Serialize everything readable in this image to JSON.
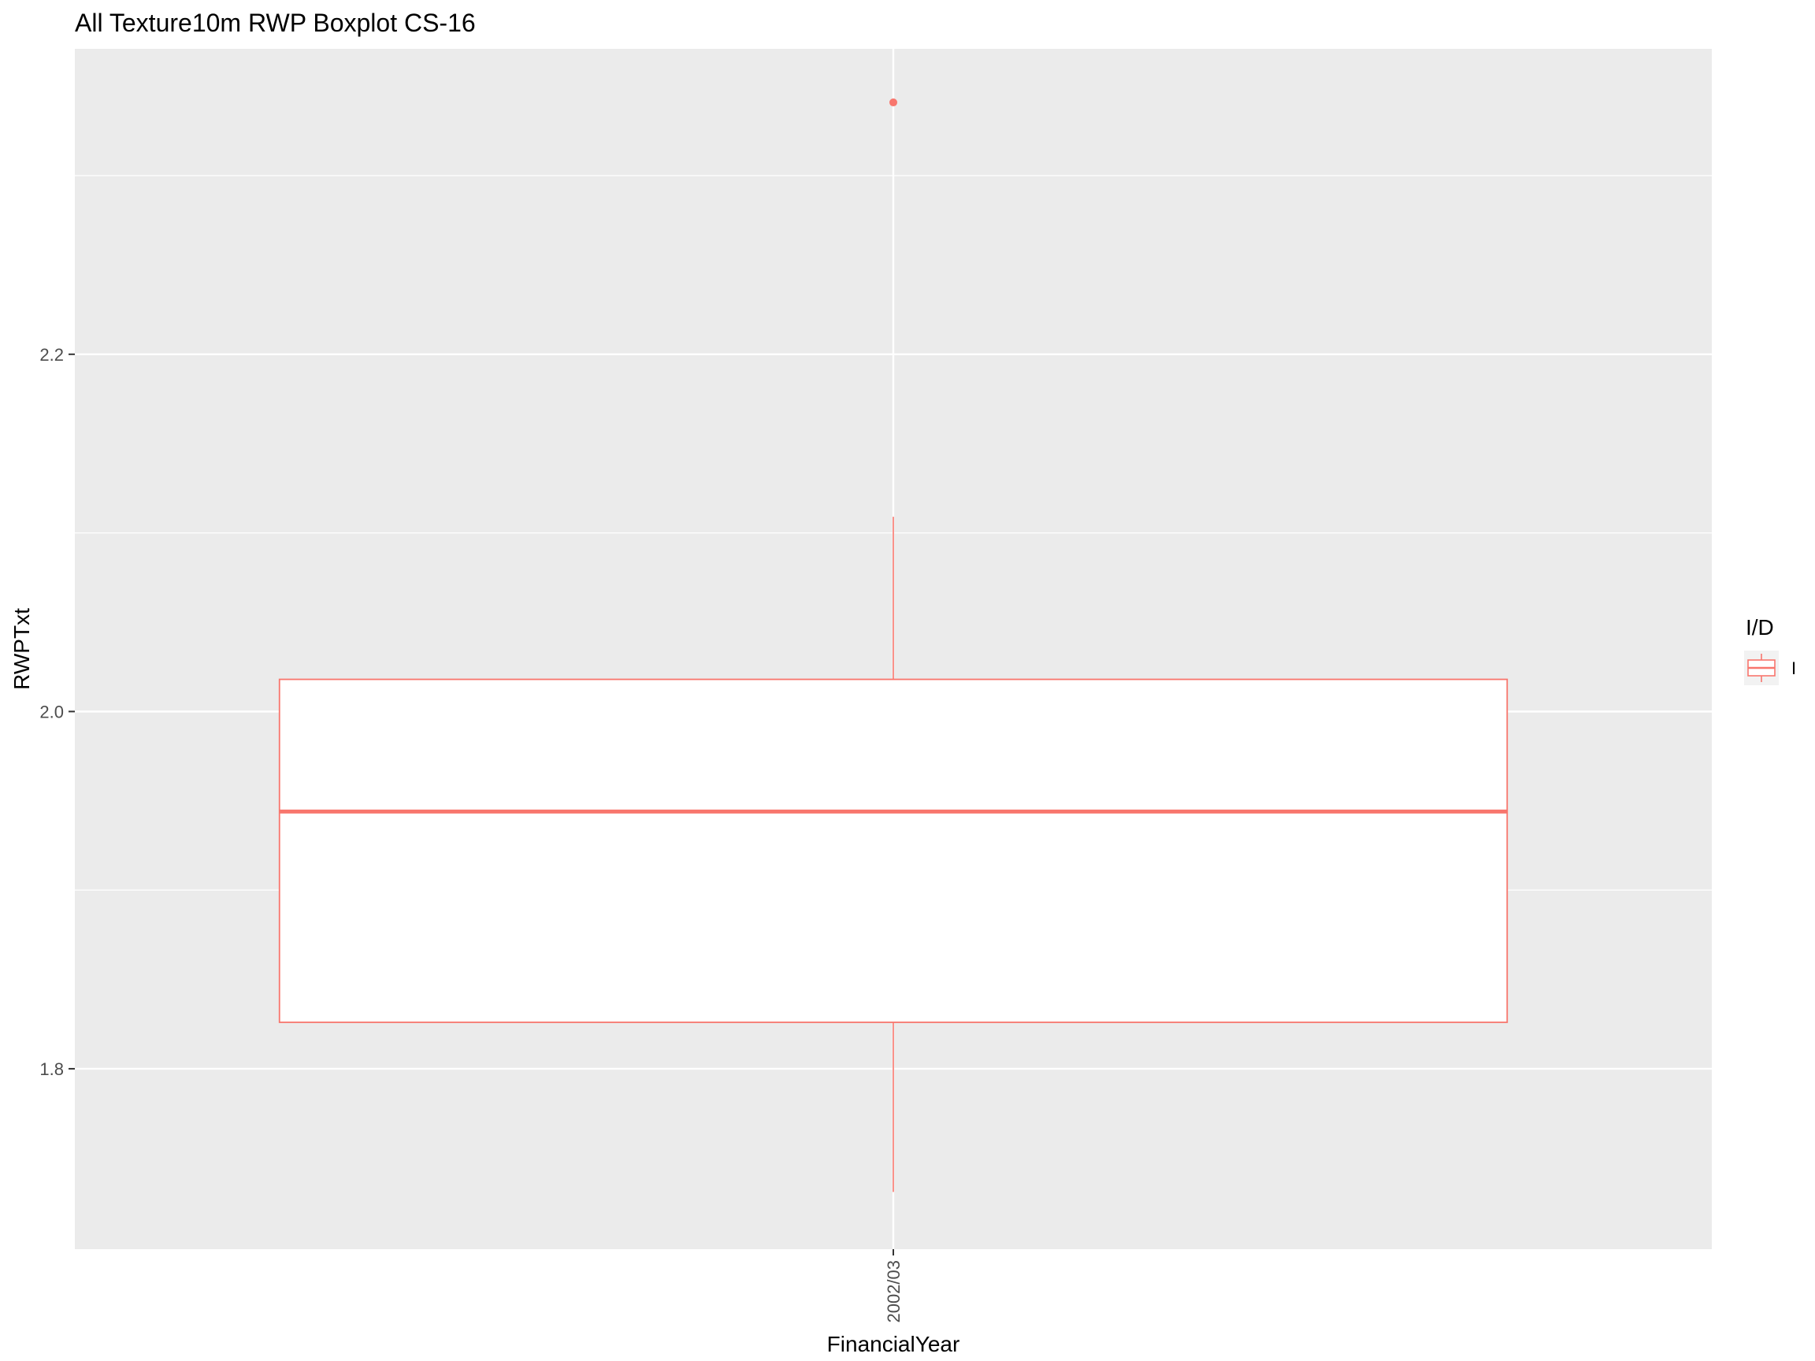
{
  "chart_data": {
    "type": "boxplot",
    "title": "All Texture10m RWP Boxplot CS-16",
    "xlabel": "FinancialYear",
    "ylabel": "RWPTxt",
    "categories": [
      "2002/03"
    ],
    "ylim": [
      1.699,
      2.371
    ],
    "y_ticks": [
      1.8,
      2.0,
      2.2
    ],
    "y_tick_labels": [
      "1.8",
      "2.0",
      "2.2"
    ],
    "y_minor_ticks": [
      1.9,
      2.1,
      2.3
    ],
    "grid": true,
    "legend": {
      "title": "I/D",
      "position": "right",
      "entries": [
        {
          "label": "I",
          "color": "#F8766D"
        }
      ]
    },
    "series": [
      {
        "name": "I",
        "color": "#F8766D",
        "boxes": [
          {
            "category": "2002/03",
            "lower_whisker": 1.731,
            "q1": 1.826,
            "median": 1.944,
            "q3": 2.018,
            "upper_whisker": 2.109,
            "outliers": [
              2.341
            ]
          }
        ]
      }
    ]
  },
  "colors": {
    "panel_background": "#EBEBEB",
    "grid": "#FFFFFF",
    "box_fill": "#FFFFFF",
    "series": "#F8766D"
  }
}
